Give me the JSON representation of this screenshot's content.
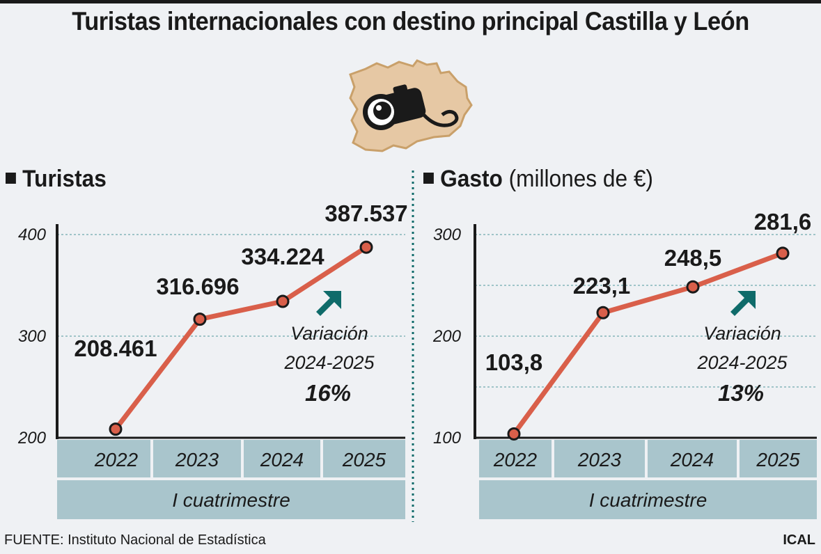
{
  "title": "Turistas internacionales con destino principal Castilla y León",
  "source": "FUENTE: Instituto Nacional de Estadística",
  "credit": "ICAL",
  "colors": {
    "line": "#d95f4a",
    "axis_band": "#a9c5cc",
    "arrow": "#0f6b6a",
    "grid": "#6fa9ad",
    "map_fill": "#e6c8a4",
    "map_stroke": "#c9a06a"
  },
  "icon": "camera-on-region-map-icon",
  "chart_data": [
    {
      "type": "line",
      "section_bold": "Turistas",
      "section_rest": "",
      "categories": [
        "2022",
        "2023",
        "2024",
        "2025"
      ],
      "values": [
        208461,
        316696,
        334224,
        387537
      ],
      "labels": [
        "208.461",
        "316.696",
        "334.224",
        "387.537"
      ],
      "y_ticks": [
        200000,
        300000,
        400000
      ],
      "y_tick_labels": [
        "200",
        "300",
        "400"
      ],
      "ylim": [
        200000,
        400000
      ],
      "period": "I cuatrimestre",
      "variation_label": "Variación",
      "variation_period": "2024-2025",
      "variation_value": "16%"
    },
    {
      "type": "line",
      "section_bold": "Gasto",
      "section_rest": " (millones de €)",
      "categories": [
        "2022",
        "2023",
        "2024",
        "2025"
      ],
      "values": [
        103.8,
        223.1,
        248.5,
        281.6
      ],
      "labels": [
        "103,8",
        "223,1",
        "248,5",
        "281,6"
      ],
      "y_ticks": [
        100,
        200,
        300
      ],
      "y_tick_labels": [
        "100",
        "200",
        "300"
      ],
      "ylim": [
        100,
        300
      ],
      "period": "I cuatrimestre",
      "variation_label": "Variación",
      "variation_period": "2024-2025",
      "variation_value": "13%"
    }
  ]
}
